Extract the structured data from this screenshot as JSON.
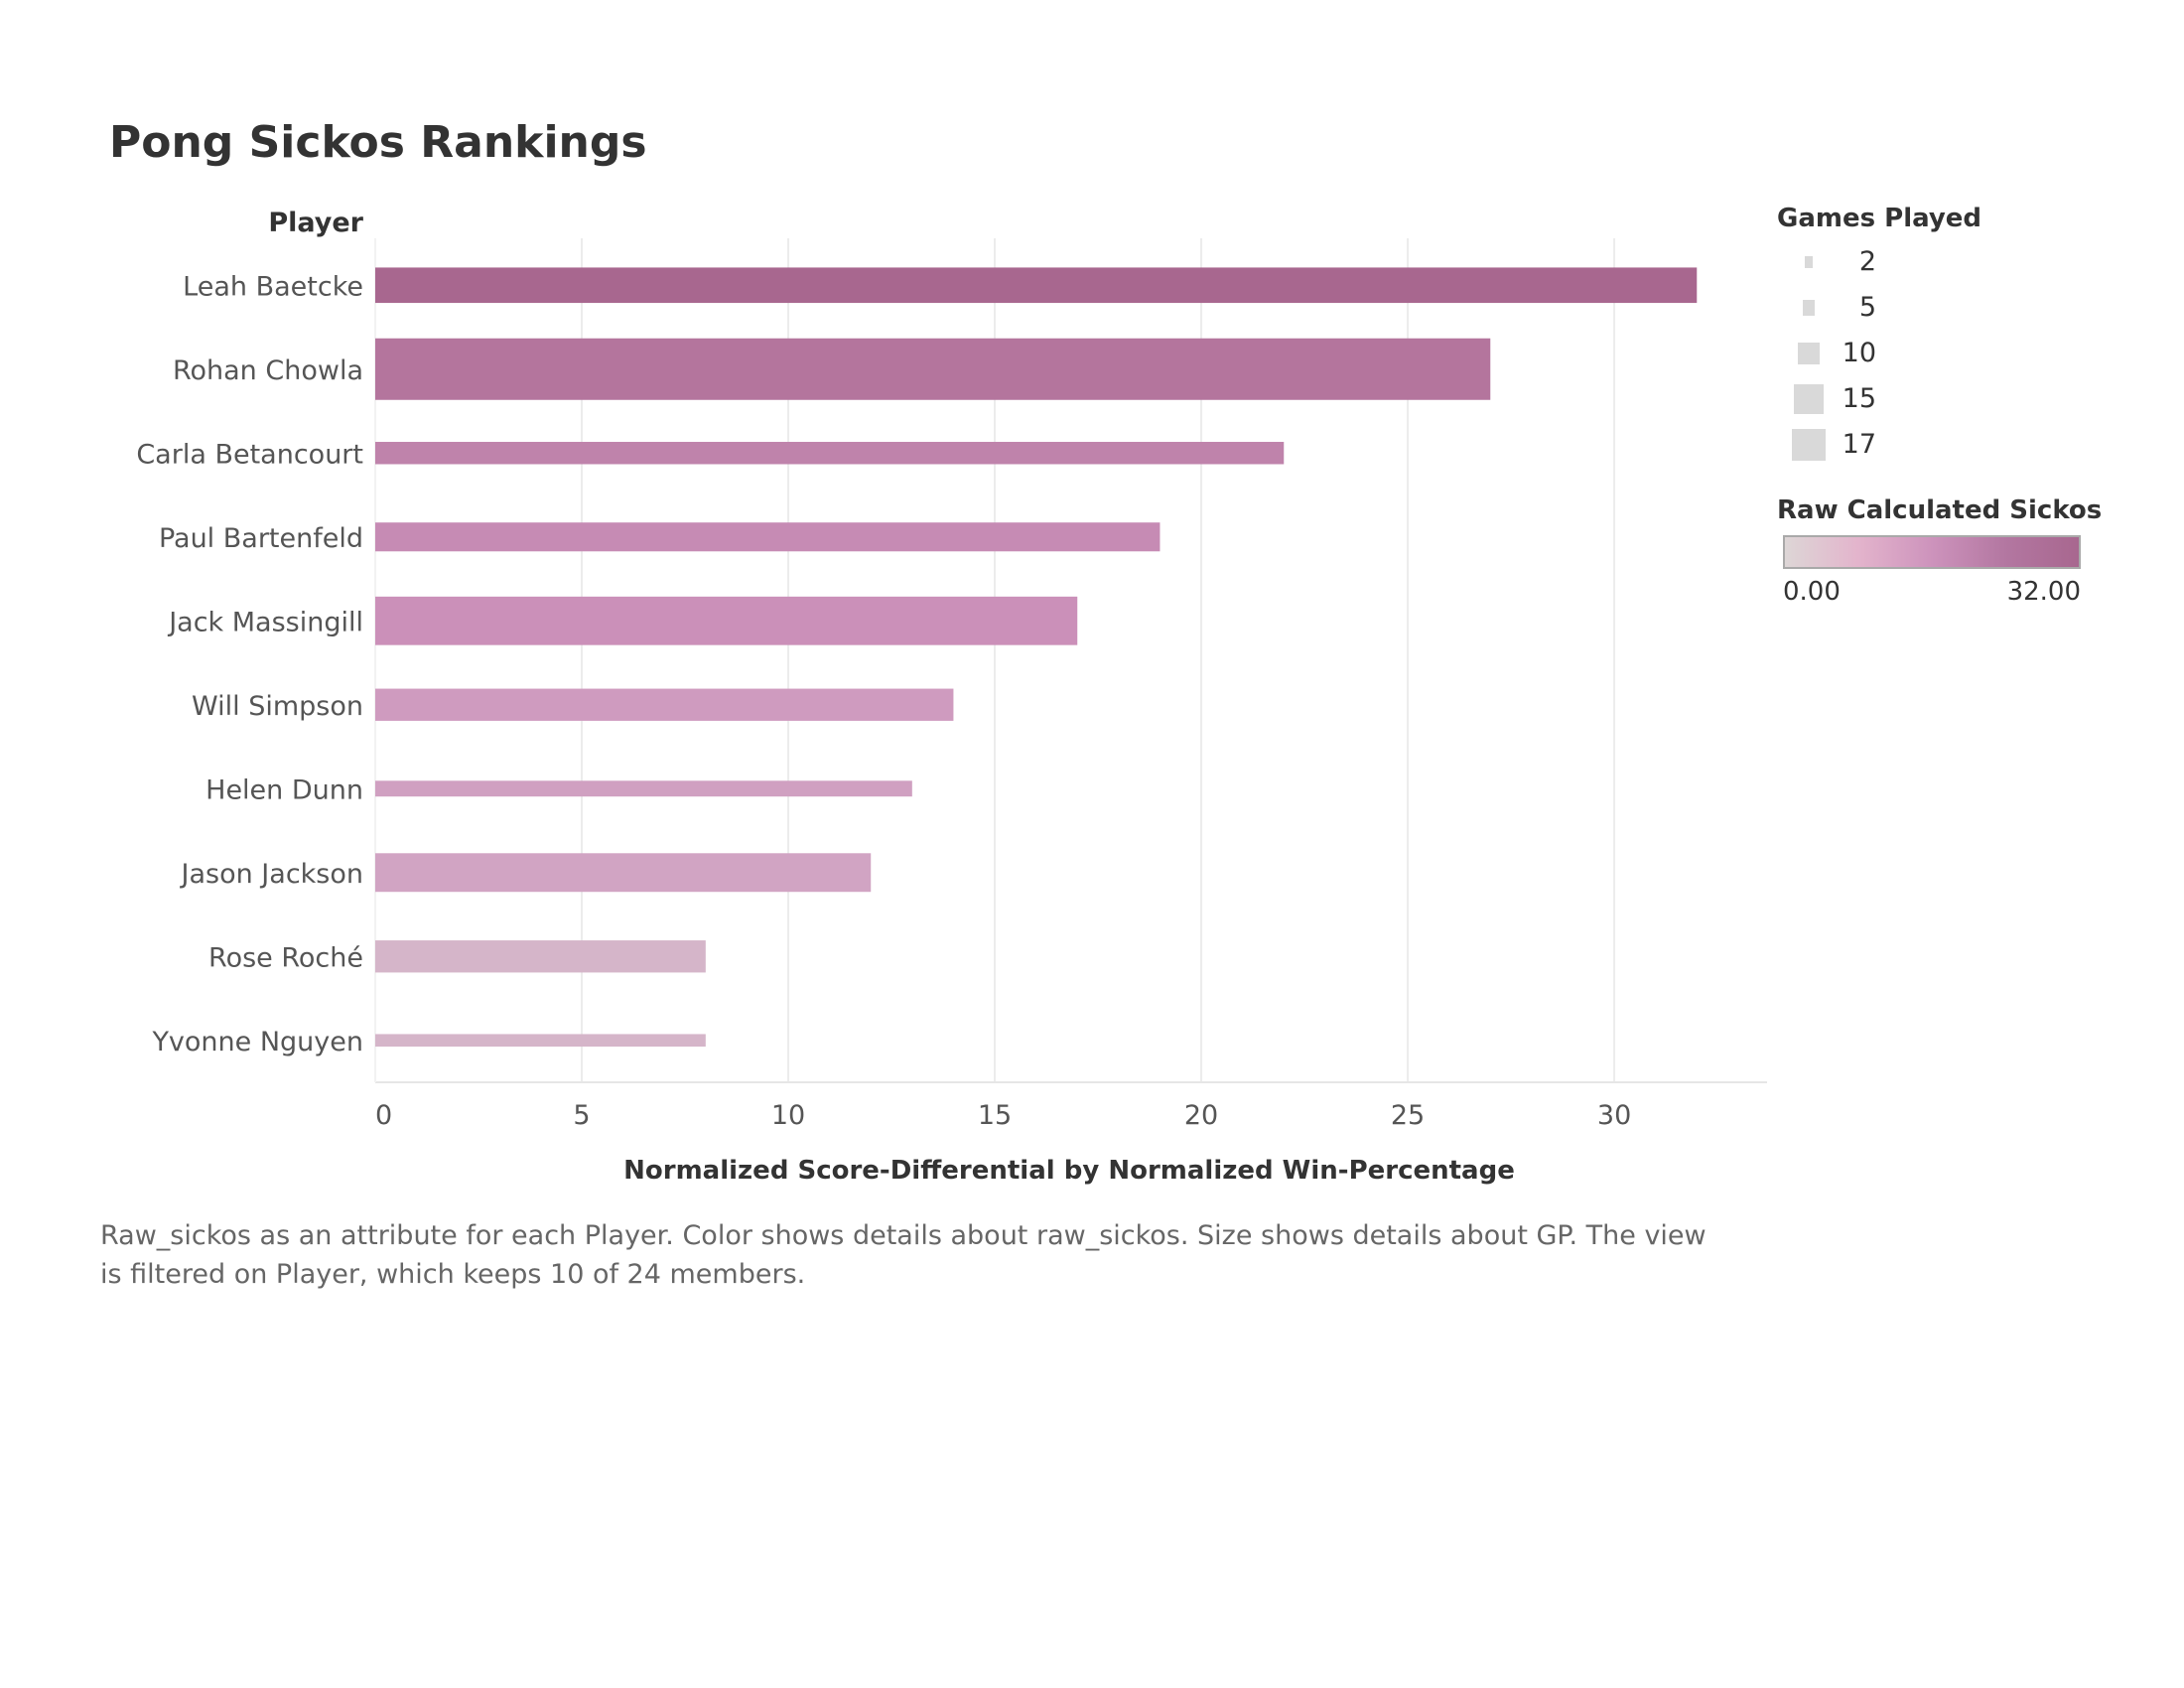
{
  "title": "Pong Sickos Rankings",
  "row_header": "Player",
  "chart_data": {
    "type": "bar",
    "orientation": "horizontal",
    "categories": [
      "Leah Baetcke",
      "Rohan Chowla",
      "Carla Betancourt",
      "Paul Bartenfeld",
      "Jack Massingill",
      "Will Simpson",
      "Helen Dunn",
      "Jason Jackson",
      "Rose Roché",
      "Yvonne Nguyen"
    ],
    "values": [
      32,
      27,
      22,
      19,
      17,
      14,
      13,
      12,
      8,
      8
    ],
    "games_played": [
      9,
      17,
      5,
      7,
      13,
      8,
      3,
      10,
      8,
      2
    ],
    "xlabel": "Normalized Score-Differential by Normalized Win-Percentage",
    "xticks": [
      "0",
      "5",
      "10",
      "15",
      "20",
      "25",
      "30"
    ],
    "xlim": [
      0,
      33.7
    ],
    "grid": true,
    "legend_position": "right"
  },
  "colors": {
    "min": "#ddd6d6",
    "max": "#a8678f"
  },
  "legend": {
    "size_title": "Games Played",
    "size_items": [
      "2",
      "5",
      "10",
      "15",
      "17"
    ],
    "size_values": [
      2,
      5,
      10,
      15,
      17
    ],
    "color_title": "Raw Calculated Sickos",
    "color_min_label": "0.00",
    "color_max_label": "32.00",
    "color_min": 0,
    "color_max": 32
  },
  "caption": "Raw_sickos as an attribute for each Player.  Color shows details about raw_sickos.  Size shows details about GP. The view is filtered on Player, which keeps 10 of 24 members."
}
